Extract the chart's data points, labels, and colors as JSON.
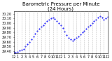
{
  "title": "Barometric Pressure per Minute\n(24 Hours)",
  "xlabel": "",
  "ylabel": "",
  "bg_color": "#ffffff",
  "line_color": "#0000ff",
  "grid_color": "#aaaaaa",
  "xlim": [
    0,
    1440
  ],
  "ylim": [
    29.35,
    30.25
  ],
  "yticks": [
    29.4,
    29.5,
    29.6,
    29.7,
    29.8,
    29.9,
    30.0,
    30.1,
    30.2
  ],
  "xticks": [
    0,
    60,
    120,
    180,
    240,
    300,
    360,
    420,
    480,
    540,
    600,
    660,
    720,
    780,
    840,
    900,
    960,
    1020,
    1080,
    1140,
    1200,
    1260,
    1320,
    1380,
    1440
  ],
  "xtick_labels": [
    "12",
    "1",
    "2",
    "3",
    "4",
    "5",
    "6",
    "7",
    "8",
    "9",
    "10",
    "11",
    "12",
    "1",
    "2",
    "3",
    "4",
    "5",
    "6",
    "7",
    "8",
    "9",
    "10",
    "11",
    "12"
  ],
  "data_x": [
    0,
    30,
    60,
    90,
    120,
    150,
    180,
    210,
    240,
    270,
    300,
    330,
    360,
    390,
    420,
    450,
    480,
    510,
    540,
    570,
    600,
    630,
    660,
    690,
    720,
    750,
    780,
    810,
    840,
    870,
    900,
    930,
    960,
    990,
    1020,
    1050,
    1080,
    1110,
    1140,
    1170,
    1200,
    1230,
    1260,
    1290,
    1320,
    1350,
    1380,
    1410,
    1440
  ],
  "data_y": [
    29.38,
    29.37,
    29.39,
    29.41,
    29.43,
    29.45,
    29.5,
    29.55,
    29.6,
    29.65,
    29.72,
    29.78,
    29.84,
    29.88,
    29.92,
    29.96,
    30.0,
    30.05,
    30.08,
    30.1,
    30.12,
    30.09,
    30.05,
    30.0,
    29.96,
    29.9,
    29.82,
    29.75,
    29.68,
    29.65,
    29.62,
    29.65,
    29.68,
    29.72,
    29.76,
    29.8,
    29.84,
    29.88,
    29.92,
    29.96,
    30.0,
    30.04,
    30.08,
    30.12,
    30.15,
    30.12,
    30.08,
    30.1,
    30.14
  ],
  "marker_size": 1.0,
  "title_fontsize": 5,
  "tick_fontsize": 3.5
}
